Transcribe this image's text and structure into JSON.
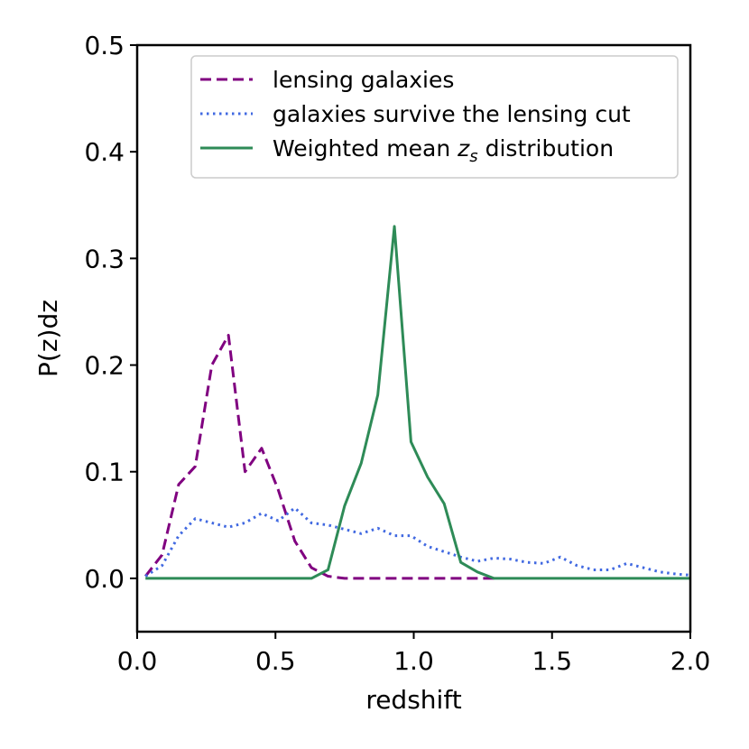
{
  "chart_data": {
    "type": "line",
    "title": "",
    "xlabel": "redshift",
    "ylabel": "P(z)dz",
    "xlim": [
      0.0,
      2.0
    ],
    "ylim": [
      -0.05,
      0.5
    ],
    "xticks": [
      0.0,
      0.5,
      1.0,
      1.5,
      2.0
    ],
    "xtick_labels": [
      "0.0",
      "0.5",
      "1.0",
      "1.5",
      "2.0"
    ],
    "yticks": [
      0.0,
      0.1,
      0.2,
      0.3,
      0.4,
      0.5
    ],
    "ytick_labels": [
      "0.0",
      "0.1",
      "0.2",
      "0.3",
      "0.4",
      "0.5"
    ],
    "grid": false,
    "legend_position": "upper-right",
    "series": [
      {
        "name": "lensing galaxies",
        "color": "#800080",
        "style": "dashed",
        "x": [
          0.03,
          0.06,
          0.09,
          0.15,
          0.21,
          0.27,
          0.33,
          0.39,
          0.45,
          0.51,
          0.57,
          0.63,
          0.69,
          0.75,
          0.81,
          0.87,
          0.93,
          0.99,
          1.05,
          1.11,
          1.17,
          1.23,
          1.29
        ],
        "y": [
          0.002,
          0.012,
          0.022,
          0.088,
          0.105,
          0.2,
          0.228,
          0.1,
          0.122,
          0.083,
          0.035,
          0.01,
          0.002,
          0.0,
          0.0,
          0.0,
          0.0,
          0.0,
          0.0,
          0.0,
          0.0,
          0.0,
          0.0
        ]
      },
      {
        "name": "galaxies survive the lensing cut",
        "color": "#4169e1",
        "style": "dotted",
        "x": [
          0.03,
          0.09,
          0.15,
          0.21,
          0.27,
          0.33,
          0.39,
          0.45,
          0.51,
          0.57,
          0.63,
          0.69,
          0.75,
          0.81,
          0.87,
          0.93,
          0.99,
          1.05,
          1.11,
          1.17,
          1.23,
          1.29,
          1.35,
          1.41,
          1.47,
          1.53,
          1.59,
          1.65,
          1.71,
          1.77,
          1.83,
          1.89,
          1.95,
          2.0
        ],
        "y": [
          0.002,
          0.012,
          0.04,
          0.056,
          0.052,
          0.048,
          0.052,
          0.061,
          0.054,
          0.066,
          0.052,
          0.05,
          0.046,
          0.042,
          0.047,
          0.04,
          0.04,
          0.03,
          0.025,
          0.02,
          0.016,
          0.019,
          0.018,
          0.015,
          0.014,
          0.02,
          0.012,
          0.008,
          0.008,
          0.014,
          0.01,
          0.006,
          0.004,
          0.003
        ]
      },
      {
        "name": "Weighted mean z_s distribution",
        "color": "#2e8b57",
        "style": "solid",
        "x": [
          0.03,
          0.15,
          0.3,
          0.45,
          0.6,
          0.63,
          0.69,
          0.75,
          0.81,
          0.87,
          0.93,
          0.99,
          1.05,
          1.11,
          1.17,
          1.23,
          1.29,
          1.4,
          1.6,
          1.8,
          2.0
        ],
        "y": [
          0.0,
          0.0,
          0.0,
          0.0,
          0.0,
          0.0,
          0.008,
          0.068,
          0.108,
          0.172,
          0.33,
          0.128,
          0.095,
          0.07,
          0.015,
          0.006,
          0.0,
          0.0,
          0.0,
          0.0,
          0.0
        ]
      }
    ]
  }
}
